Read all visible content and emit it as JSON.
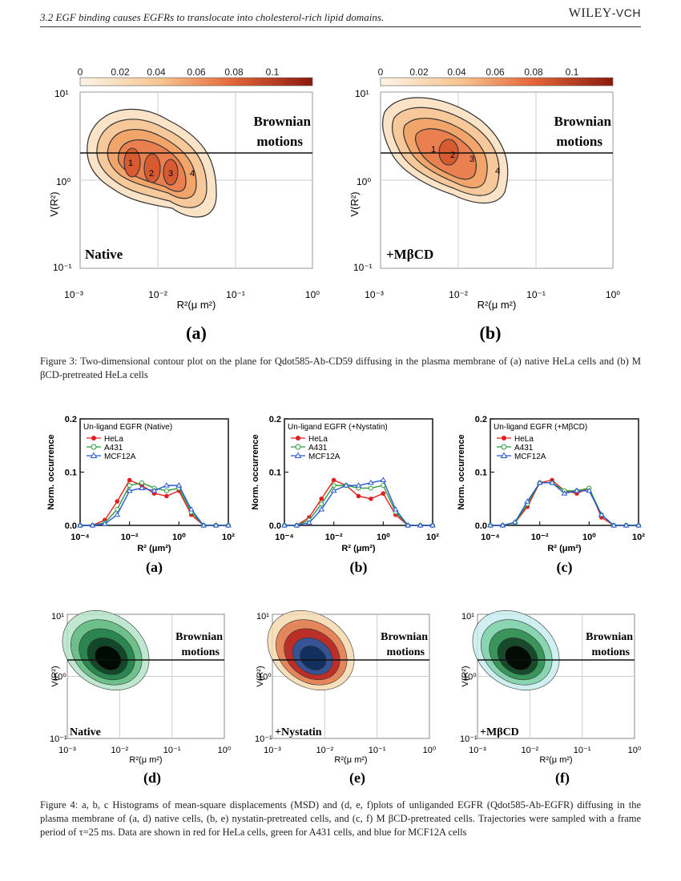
{
  "header": {
    "section": "3.2   EGF binding causes EGFRs to translocate into cholesterol-rich lipid domains.",
    "brand_main": "WILEY",
    "brand_suffix": "-VCH"
  },
  "figure3": {
    "colorbar_ticks": [
      "0",
      "0.02",
      "0.04",
      "0.06",
      "0.08",
      "0.1"
    ],
    "y_ticks": [
      "10¹",
      "10⁰",
      "10⁻¹"
    ],
    "x_ticks": [
      "10⁻³",
      "10⁻²",
      "10⁻¹",
      "10⁰"
    ],
    "ylabel": "V(R²)",
    "xlabel": "R²(μ m²)",
    "brownian_line1": "Brownian",
    "brownian_line2": "motions",
    "panels": [
      {
        "label": "(a)",
        "condition": "Native",
        "peaks": [
          "1",
          "2",
          "3",
          "4"
        ]
      },
      {
        "label": "(b)",
        "condition": "+MβCD",
        "peaks": [
          "1",
          "2",
          "3",
          "4"
        ]
      }
    ],
    "caption": "Figure 3: Two-dimensional contour plot on the plane for Qdot585-Ab-CD59 diffusing in the plasma membrane of (a) native HeLa cells and (b) M βCD-pretreated HeLa cells",
    "colors": {
      "low": "#fbefdc",
      "mid": "#f2a15f",
      "high": "#8b1a0e"
    }
  },
  "figure4": {
    "histograms": [
      {
        "label": "(a)",
        "legend_title": "Un-ligand EGFR (Native)"
      },
      {
        "label": "(b)",
        "legend_title": "Un-ligand EGFR (+Nystatin)"
      },
      {
        "label": "(c)",
        "legend_title": "Un-ligand EGFR (+MβCD)"
      }
    ],
    "legend": [
      {
        "name": "HeLa",
        "color": "#e02020",
        "marker": "filled-circle"
      },
      {
        "name": "A431",
        "color": "#2a9a3a",
        "marker": "open-circle"
      },
      {
        "name": "MCF12A",
        "color": "#2a5ad0",
        "marker": "open-triangle"
      }
    ],
    "hist_ylabel": "Norm. occurrence",
    "hist_xlabel": "R² (μm²)",
    "hist_y_ticks": [
      "0.2",
      "0.1",
      "0.0"
    ],
    "hist_x_ticks": [
      "10⁻⁴",
      "10⁻²",
      "10⁰",
      "10²"
    ],
    "contours": [
      {
        "label": "(d)",
        "condition": "Native"
      },
      {
        "label": "(e)",
        "condition": "+Nystatin"
      },
      {
        "label": "(f)",
        "condition": "+MβCD"
      }
    ],
    "contour_y_ticks": [
      "10¹",
      "10⁰",
      "10⁻¹"
    ],
    "contour_x_ticks": [
      "10⁻³",
      "10⁻²",
      "10⁻¹",
      "10⁰"
    ],
    "contour_ylabel": "V(R²)",
    "contour_xlabel": "R²(μ m²)",
    "brownian_line1": "Brownian",
    "brownian_line2": "motions",
    "caption": "Figure 4: a, b, c Histograms of mean-square displacements (MSD) and (d, e, f)plots of unliganded EGFR (Qdot585-Ab-EGFR) diffusing in the plasma membrane of (a, d) native cells, (b, e) nystatin-pretreated cells, and (c, f) M βCD-pretreated cells. Trajectories were sampled with a frame period of τ=25 ms. Data are shown in red for HeLa cells, green for A431 cells, and blue for MCF12A cells"
  },
  "chart_data": [
    {
      "type": "line",
      "title": "Un-ligand EGFR (Native)",
      "xlabel": "R² (μm²)",
      "ylabel": "Norm. occurrence",
      "x_log10": [
        -4,
        -3.5,
        -3,
        -2.5,
        -2,
        -1.5,
        -1,
        -0.5,
        0,
        0.5,
        1,
        1.5,
        2
      ],
      "ylim": [
        0,
        0.2
      ],
      "series": [
        {
          "name": "HeLa",
          "values": [
            0.0,
            0.0,
            0.01,
            0.045,
            0.085,
            0.075,
            0.06,
            0.055,
            0.065,
            0.02,
            0.0,
            0.0,
            0.0
          ]
        },
        {
          "name": "A431",
          "values": [
            0.0,
            0.0,
            0.005,
            0.03,
            0.075,
            0.08,
            0.07,
            0.065,
            0.07,
            0.025,
            0.0,
            0.0,
            0.0
          ]
        },
        {
          "name": "MCF12A",
          "values": [
            0.0,
            0.0,
            0.003,
            0.02,
            0.065,
            0.07,
            0.065,
            0.075,
            0.075,
            0.03,
            0.0,
            0.0,
            0.0
          ]
        }
      ]
    },
    {
      "type": "line",
      "title": "Un-ligand EGFR (+Nystatin)",
      "xlabel": "R² (μm²)",
      "ylabel": "Norm. occurrence",
      "x_log10": [
        -4,
        -3.5,
        -3,
        -2.5,
        -2,
        -1.5,
        -1,
        -0.5,
        0,
        0.5,
        1,
        1.5,
        2
      ],
      "ylim": [
        0,
        0.2
      ],
      "series": [
        {
          "name": "HeLa",
          "values": [
            0.0,
            0.0,
            0.015,
            0.05,
            0.085,
            0.075,
            0.055,
            0.05,
            0.06,
            0.02,
            0.0,
            0.0,
            0.0
          ]
        },
        {
          "name": "A431",
          "values": [
            0.0,
            0.0,
            0.01,
            0.04,
            0.075,
            0.075,
            0.07,
            0.07,
            0.075,
            0.025,
            0.0,
            0.0,
            0.0
          ]
        },
        {
          "name": "MCF12A",
          "values": [
            0.0,
            0.0,
            0.005,
            0.03,
            0.065,
            0.075,
            0.075,
            0.08,
            0.085,
            0.03,
            0.0,
            0.0,
            0.0
          ]
        }
      ]
    },
    {
      "type": "line",
      "title": "Un-ligand EGFR (+MβCD)",
      "xlabel": "R² (μm²)",
      "ylabel": "Norm. occurrence",
      "x_log10": [
        -4,
        -3.5,
        -3,
        -2.5,
        -2,
        -1.5,
        -1,
        -0.5,
        0,
        0.5,
        1,
        1.5,
        2
      ],
      "ylim": [
        0,
        0.2
      ],
      "series": [
        {
          "name": "HeLa",
          "values": [
            0.0,
            0.0,
            0.005,
            0.035,
            0.08,
            0.085,
            0.065,
            0.06,
            0.07,
            0.015,
            0.0,
            0.0,
            0.0
          ]
        },
        {
          "name": "A431",
          "values": [
            0.0,
            0.0,
            0.005,
            0.04,
            0.08,
            0.08,
            0.065,
            0.065,
            0.07,
            0.02,
            0.0,
            0.0,
            0.0
          ]
        },
        {
          "name": "MCF12A",
          "values": [
            0.0,
            0.0,
            0.006,
            0.045,
            0.08,
            0.08,
            0.06,
            0.065,
            0.065,
            0.02,
            0.0,
            0.0,
            0.0
          ]
        }
      ]
    }
  ]
}
